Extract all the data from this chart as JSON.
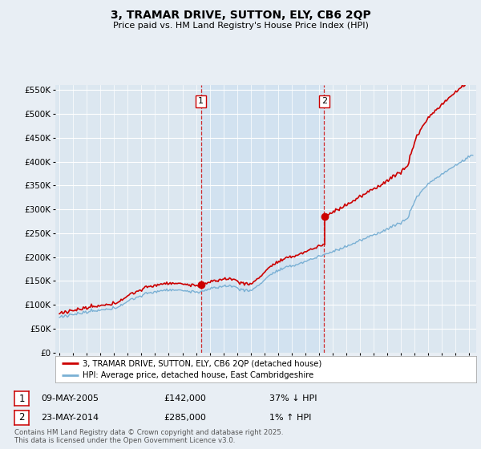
{
  "title": "3, TRAMAR DRIVE, SUTTON, ELY, CB6 2QP",
  "subtitle": "Price paid vs. HM Land Registry's House Price Index (HPI)",
  "legend_line1": "3, TRAMAR DRIVE, SUTTON, ELY, CB6 2QP (detached house)",
  "legend_line2": "HPI: Average price, detached house, East Cambridgeshire",
  "sale1_date": "09-MAY-2005",
  "sale1_price": "£142,000",
  "sale1_hpi": "37% ↓ HPI",
  "sale2_date": "23-MAY-2014",
  "sale2_price": "£285,000",
  "sale2_hpi": "1% ↑ HPI",
  "footer": "Contains HM Land Registry data © Crown copyright and database right 2025.\nThis data is licensed under the Open Government Licence v3.0.",
  "sale1_year": 2005.36,
  "sale1_value": 142000,
  "sale2_year": 2014.38,
  "sale2_value": 285000,
  "hpi_color": "#7ab0d4",
  "sale_color": "#cc0000",
  "vline_color": "#cc0000",
  "bg_color": "#e8eef4",
  "plot_bg": "#dce7f0",
  "shade_color": "#ccdff0",
  "ylim": [
    0,
    560000
  ],
  "yticks": [
    0,
    50000,
    100000,
    150000,
    200000,
    250000,
    300000,
    350000,
    400000,
    450000,
    500000,
    550000
  ]
}
